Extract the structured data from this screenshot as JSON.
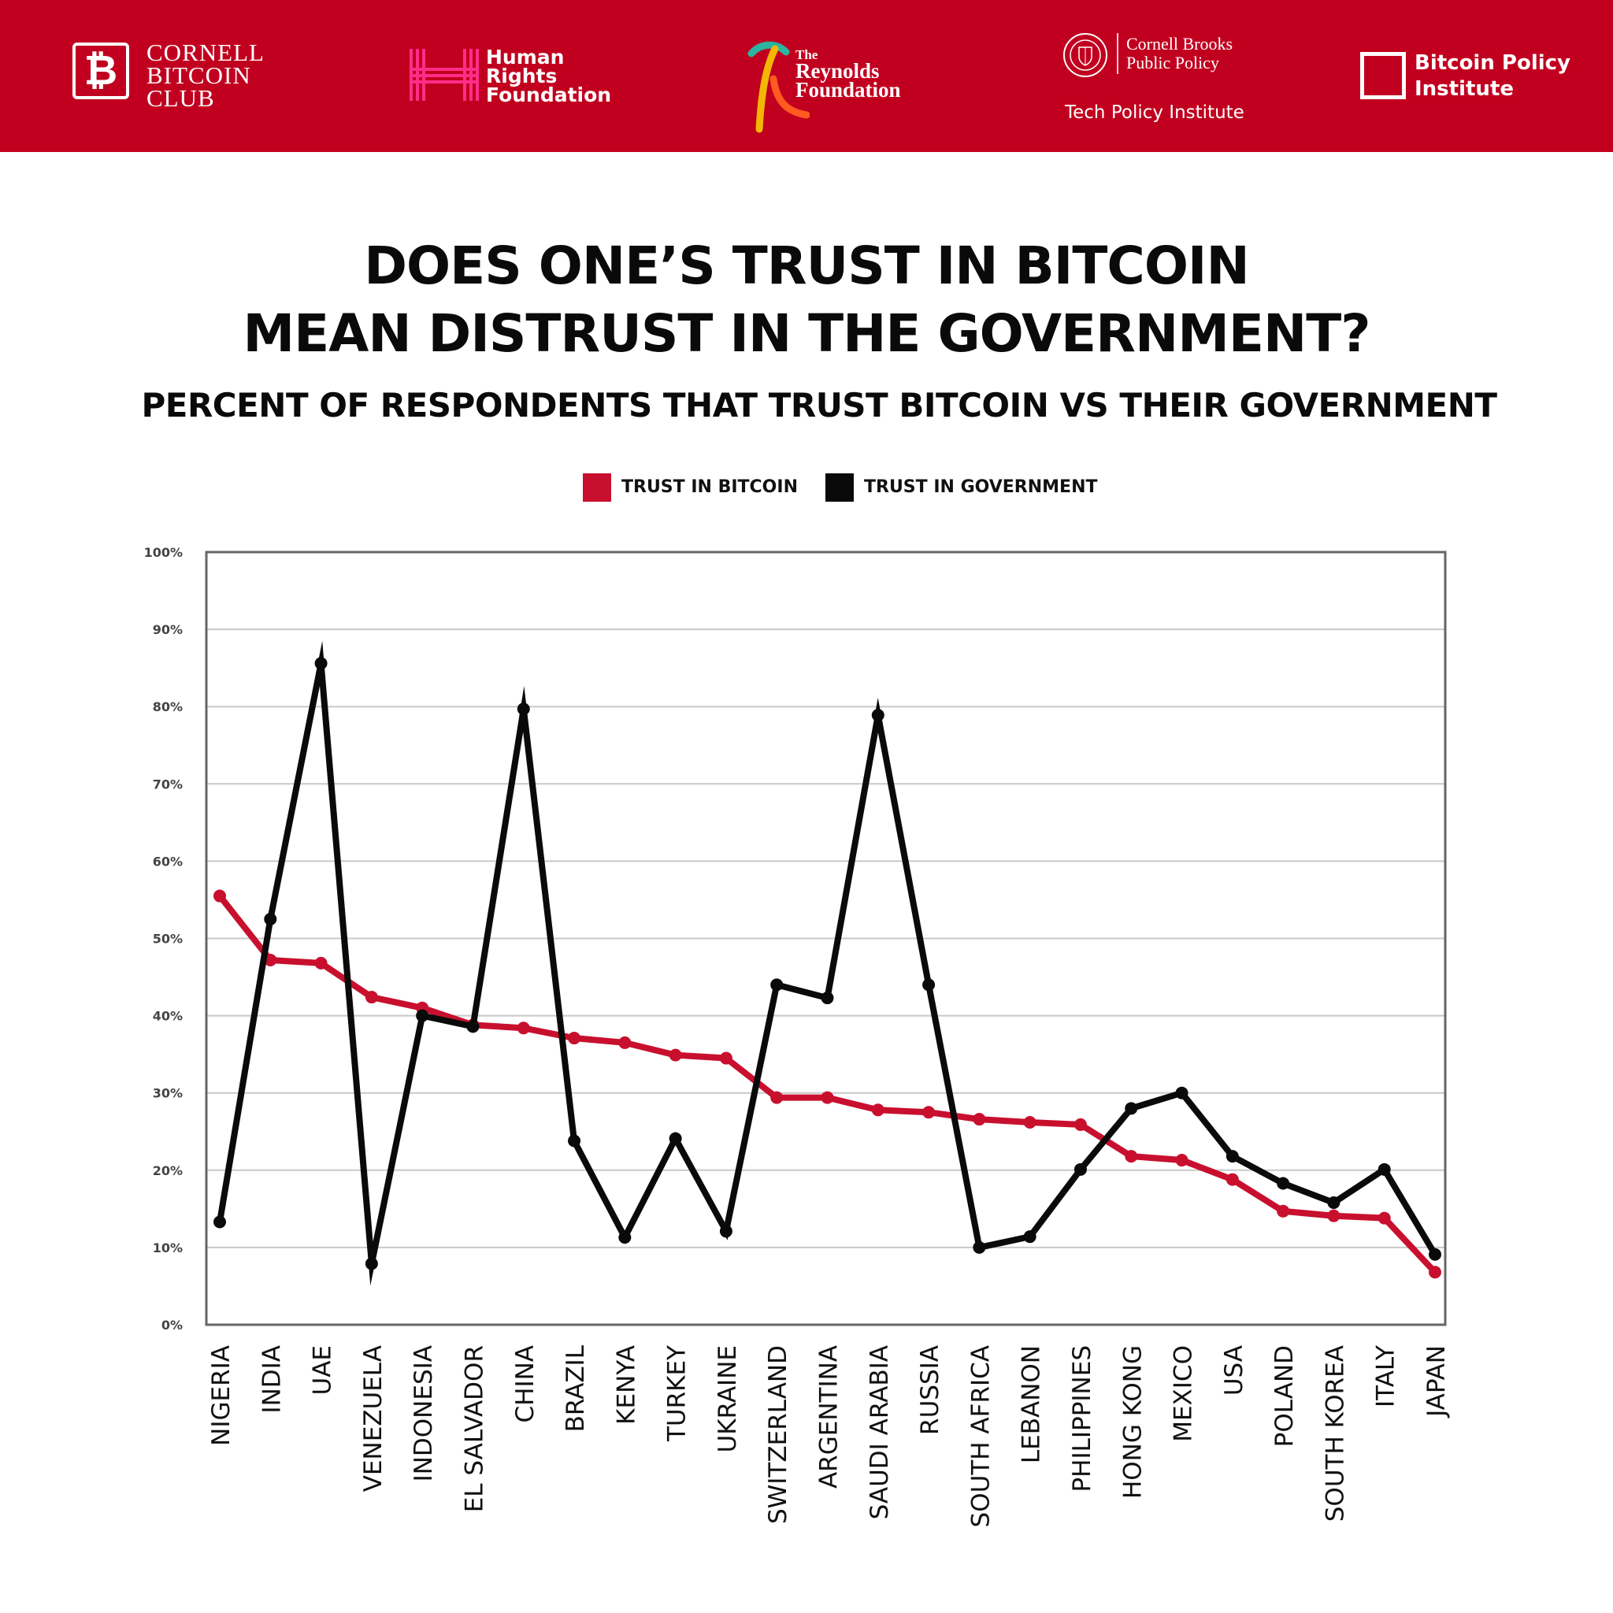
{
  "header": {
    "logos": {
      "cornell_bitcoin_club": {
        "mark": "₿",
        "lines": [
          "CORNELL",
          "BITCOIN",
          "CLUB"
        ]
      },
      "human_rights_foundation": {
        "lines": [
          "Human",
          "Rights",
          "Foundation"
        ]
      },
      "reynolds_foundation": {
        "small": "The",
        "lines": [
          "Reynolds",
          "Foundation"
        ]
      },
      "cornell_brooks": {
        "lines": [
          "Cornell Brooks",
          "Public Policy"
        ],
        "subtitle": "Tech Policy Institute"
      },
      "bitcoin_policy_institute": {
        "lines": [
          "Bitcoin Policy",
          "Institute"
        ]
      }
    },
    "colors": {
      "banner": "#c1001f",
      "text": "#ffffff"
    }
  },
  "chart_data": {
    "type": "line",
    "title": [
      "DOES ONE’S TRUST IN BITCOIN",
      "MEAN DISTRUST IN THE GOVERNMENT?"
    ],
    "subtitle": "PERCENT OF RESPONDENTS THAT TRUST BITCOIN VS THEIR GOVERNMENT",
    "categories": [
      "NIGERIA",
      "INDIA",
      "UAE",
      "VENEZUELA",
      "INDONESIA",
      "EL SALVADOR",
      "CHINA",
      "BRAZIL",
      "KENYA",
      "TURKEY",
      "UKRAINE",
      "SWITZERLAND",
      "ARGENTINA",
      "SAUDI ARABIA",
      "RUSSIA",
      "SOUTH AFRICA",
      "LEBANON",
      "PHILIPPINES",
      "HONG KONG",
      "MEXICO",
      "USA",
      "POLAND",
      "SOUTH KOREA",
      "ITALY",
      "JAPAN"
    ],
    "series": [
      {
        "name": "TRUST IN BITCOIN",
        "color": "#c8102e",
        "values": [
          55.5,
          47.2,
          46.8,
          42.4,
          41.0,
          38.8,
          38.4,
          37.1,
          36.5,
          34.9,
          34.5,
          29.4,
          29.4,
          27.8,
          27.5,
          26.6,
          26.2,
          25.9,
          21.8,
          21.3,
          18.8,
          14.7,
          14.1,
          13.8,
          6.8
        ]
      },
      {
        "name": "TRUST IN GOVERNMENT",
        "color": "#0a0a0a",
        "values": [
          13.3,
          52.5,
          85.6,
          7.9,
          40.0,
          38.6,
          79.7,
          23.8,
          11.3,
          24.1,
          12.1,
          44.0,
          42.3,
          78.9,
          44.0,
          10.0,
          11.4,
          20.1,
          28.0,
          30.0,
          21.8,
          18.3,
          15.8,
          20.1,
          9.1
        ]
      }
    ],
    "ylim": [
      0,
      100
    ],
    "y_ticks": [
      "0%",
      "10%",
      "20%",
      "30%",
      "40%",
      "50%",
      "60%",
      "70%",
      "80%",
      "90%",
      "100%"
    ],
    "grid": true,
    "legend_position": "top-center",
    "xlabel": "",
    "ylabel": ""
  }
}
